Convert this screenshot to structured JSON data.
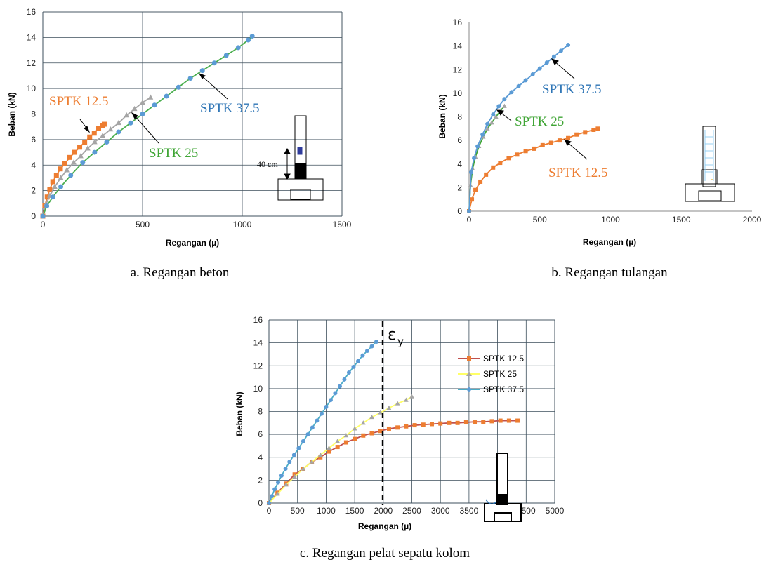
{
  "chart_data": [
    {
      "type": "line",
      "caption": "a. Regangan beton",
      "xlabel": "Regangan (µ)",
      "ylabel": "Beban (kN)",
      "xlim": [
        0,
        1500
      ],
      "ylim": [
        0,
        16
      ],
      "xticks": [
        0,
        500,
        1000,
        1500
      ],
      "yticks": [
        0,
        2,
        4,
        6,
        8,
        10,
        12,
        14,
        16
      ],
      "grid": true,
      "series": [
        {
          "name": "SPTK 12.5",
          "color": "#ED7D31",
          "marker": "square",
          "x": [
            0,
            10,
            22,
            35,
            50,
            68,
            88,
            110,
            135,
            160,
            185,
            210,
            235,
            258,
            280,
            300,
            308
          ],
          "y": [
            0,
            0.8,
            1.5,
            2.1,
            2.7,
            3.2,
            3.7,
            4.1,
            4.6,
            5.0,
            5.4,
            5.8,
            6.2,
            6.5,
            6.9,
            7.1,
            7.2
          ]
        },
        {
          "name": "SPTK 25",
          "color": "#A5A5A5",
          "marker": "triangle",
          "x": [
            0,
            15,
            35,
            60,
            90,
            120,
            155,
            190,
            225,
            260,
            300,
            340,
            380,
            420,
            460,
            500,
            540
          ],
          "y": [
            0,
            0.9,
            1.6,
            2.3,
            3.0,
            3.6,
            4.2,
            4.7,
            5.3,
            5.8,
            6.3,
            6.8,
            7.3,
            7.9,
            8.4,
            8.9,
            9.3
          ]
        },
        {
          "name": "SPTK 37.5",
          "color": "#5B9BD5",
          "line_color": "#4CAF50",
          "marker": "circle",
          "x": [
            0,
            20,
            50,
            90,
            140,
            200,
            260,
            320,
            380,
            440,
            500,
            560,
            620,
            680,
            740,
            800,
            860,
            920,
            980,
            1030,
            1050
          ],
          "y": [
            0,
            0.8,
            1.5,
            2.3,
            3.2,
            4.2,
            5.0,
            5.8,
            6.6,
            7.3,
            8.0,
            8.7,
            9.4,
            10.1,
            10.8,
            11.4,
            12.0,
            12.6,
            13.2,
            13.8,
            14.1
          ]
        }
      ],
      "annotations": [
        {
          "text": "SPTK 12.5",
          "color": "#ED7D31"
        },
        {
          "text": "SPTK 25",
          "color": "#3FA535"
        },
        {
          "text": "SPTK 37.5",
          "color": "#2E75B6"
        },
        {
          "text": "40 cm",
          "color": "#000000"
        }
      ]
    },
    {
      "type": "line",
      "caption": "b. Regangan tulangan",
      "xlabel": "Regangan (µ)",
      "ylabel": "Beban (kN)",
      "xlim": [
        0,
        2000
      ],
      "ylim": [
        0,
        16
      ],
      "xticks": [
        0,
        500,
        1000,
        1500,
        2000
      ],
      "yticks": [
        0,
        2,
        4,
        6,
        8,
        10,
        12,
        14,
        16
      ],
      "grid": false,
      "series": [
        {
          "name": "SPTK 12.5",
          "color": "#ED7D31",
          "marker": "square",
          "x": [
            0,
            20,
            45,
            80,
            120,
            170,
            220,
            280,
            340,
            400,
            460,
            520,
            580,
            640,
            700,
            760,
            820,
            880,
            910
          ],
          "y": [
            0,
            1.0,
            1.8,
            2.5,
            3.1,
            3.7,
            4.1,
            4.5,
            4.8,
            5.1,
            5.3,
            5.6,
            5.8,
            6.0,
            6.2,
            6.5,
            6.7,
            6.9,
            7.0
          ]
        },
        {
          "name": "SPTK 25",
          "color": "#A5A5A5",
          "line_color": "#3FA535",
          "marker": "triangle",
          "x": [
            0,
            10,
            25,
            45,
            70,
            100,
            130,
            160,
            190,
            220,
            250
          ],
          "y": [
            0,
            2.2,
            3.6,
            4.6,
            5.5,
            6.3,
            7.0,
            7.5,
            8.0,
            8.5,
            8.9
          ]
        },
        {
          "name": "SPTK 37.5",
          "color": "#5B9BD5",
          "marker": "circle",
          "x": [
            0,
            15,
            35,
            60,
            95,
            130,
            170,
            210,
            250,
            300,
            350,
            400,
            450,
            500,
            550,
            600,
            650,
            700
          ],
          "y": [
            0,
            3.3,
            4.5,
            5.5,
            6.5,
            7.4,
            8.2,
            8.9,
            9.5,
            10.1,
            10.6,
            11.1,
            11.6,
            12.1,
            12.6,
            13.1,
            13.6,
            14.1
          ]
        }
      ],
      "annotations": [
        {
          "text": "SPTK 37.5",
          "color": "#2E75B6"
        },
        {
          "text": "SPTK 25",
          "color": "#3FA535"
        },
        {
          "text": "SPTK 12.5",
          "color": "#ED7D31"
        }
      ]
    },
    {
      "type": "line",
      "caption": "c. Regangan pelat sepatu kolom",
      "xlabel": "Regangan (µ)",
      "ylabel": "Beban (kN)",
      "xlim": [
        0,
        5000
      ],
      "ylim": [
        0,
        16
      ],
      "xticks": [
        0,
        500,
        1000,
        1500,
        2000,
        2500,
        3000,
        3500,
        4000,
        4500,
        5000
      ],
      "yticks": [
        0,
        2,
        4,
        6,
        8,
        10,
        12,
        14,
        16
      ],
      "grid": true,
      "legend": "right",
      "series": [
        {
          "name": "SPTK 12.5",
          "color": "#ED7D31",
          "line_color": "#C0504D",
          "marker": "square",
          "x": [
            0,
            150,
            300,
            450,
            600,
            750,
            900,
            1050,
            1200,
            1350,
            1500,
            1650,
            1800,
            1950,
            2100,
            2250,
            2400,
            2550,
            2700,
            2850,
            3000,
            3150,
            3300,
            3450,
            3600,
            3750,
            3900,
            4050,
            4200,
            4350
          ],
          "y": [
            0,
            0.9,
            1.7,
            2.5,
            3.0,
            3.6,
            4.0,
            4.5,
            4.9,
            5.3,
            5.6,
            5.9,
            6.1,
            6.3,
            6.5,
            6.6,
            6.7,
            6.8,
            6.85,
            6.9,
            6.95,
            7.0,
            7.0,
            7.05,
            7.1,
            7.1,
            7.15,
            7.2,
            7.2,
            7.2
          ]
        },
        {
          "name": "SPTK 25",
          "color": "#A5A5A5",
          "line_color": "#FFFF66",
          "marker": "triangle",
          "x": [
            0,
            150,
            300,
            450,
            600,
            750,
            900,
            1050,
            1200,
            1350,
            1500,
            1650,
            1800,
            1950,
            2100,
            2250,
            2400,
            2500
          ],
          "y": [
            0,
            0.8,
            1.6,
            2.3,
            3.0,
            3.6,
            4.2,
            4.8,
            5.4,
            5.9,
            6.5,
            7.0,
            7.5,
            7.9,
            8.3,
            8.7,
            9.0,
            9.3
          ]
        },
        {
          "name": "SPTK 37.5",
          "color": "#5B9BD5",
          "line_color": "#4BACC6",
          "marker": "circle",
          "x": [
            0,
            50,
            100,
            160,
            220,
            290,
            360,
            440,
            520,
            600,
            680,
            760,
            840,
            920,
            1000,
            1080,
            1160,
            1240,
            1320,
            1400,
            1480,
            1560,
            1640,
            1720,
            1800,
            1880
          ],
          "y": [
            0,
            0.6,
            1.2,
            1.8,
            2.4,
            3.0,
            3.6,
            4.2,
            4.8,
            5.4,
            6.0,
            6.6,
            7.2,
            7.8,
            8.4,
            9.0,
            9.6,
            10.2,
            10.8,
            11.4,
            11.9,
            12.4,
            12.9,
            13.3,
            13.7,
            14.1
          ]
        }
      ],
      "marker_line": {
        "x": 2000,
        "label": "ε",
        "sub": "y"
      }
    }
  ]
}
